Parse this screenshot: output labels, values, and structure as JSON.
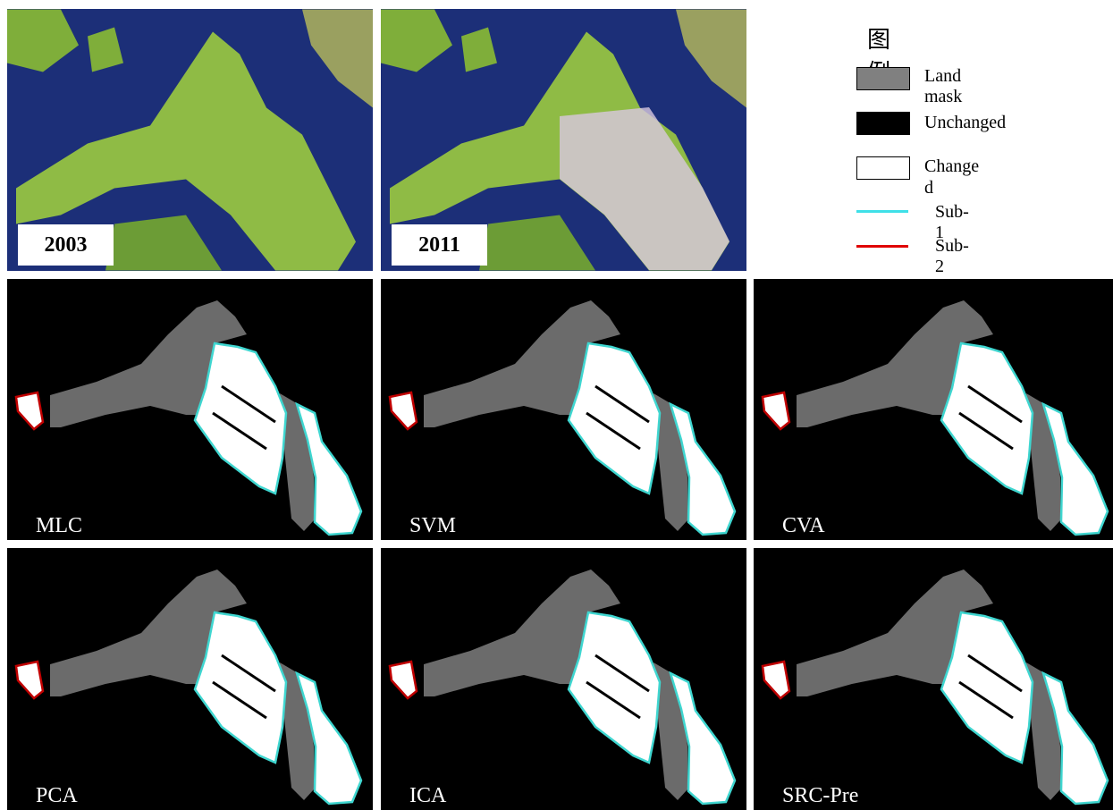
{
  "images": [
    {
      "label": "2003"
    },
    {
      "label": "2011"
    }
  ],
  "legend": {
    "title": "图例",
    "items": [
      "Land mask",
      "Unchanged",
      "Changed",
      "Sub-1",
      "Sub-2"
    ]
  },
  "panels": [
    "MLC",
    "SVM",
    "CVA",
    "PCA",
    "ICA",
    "SRC-Pre"
  ]
}
